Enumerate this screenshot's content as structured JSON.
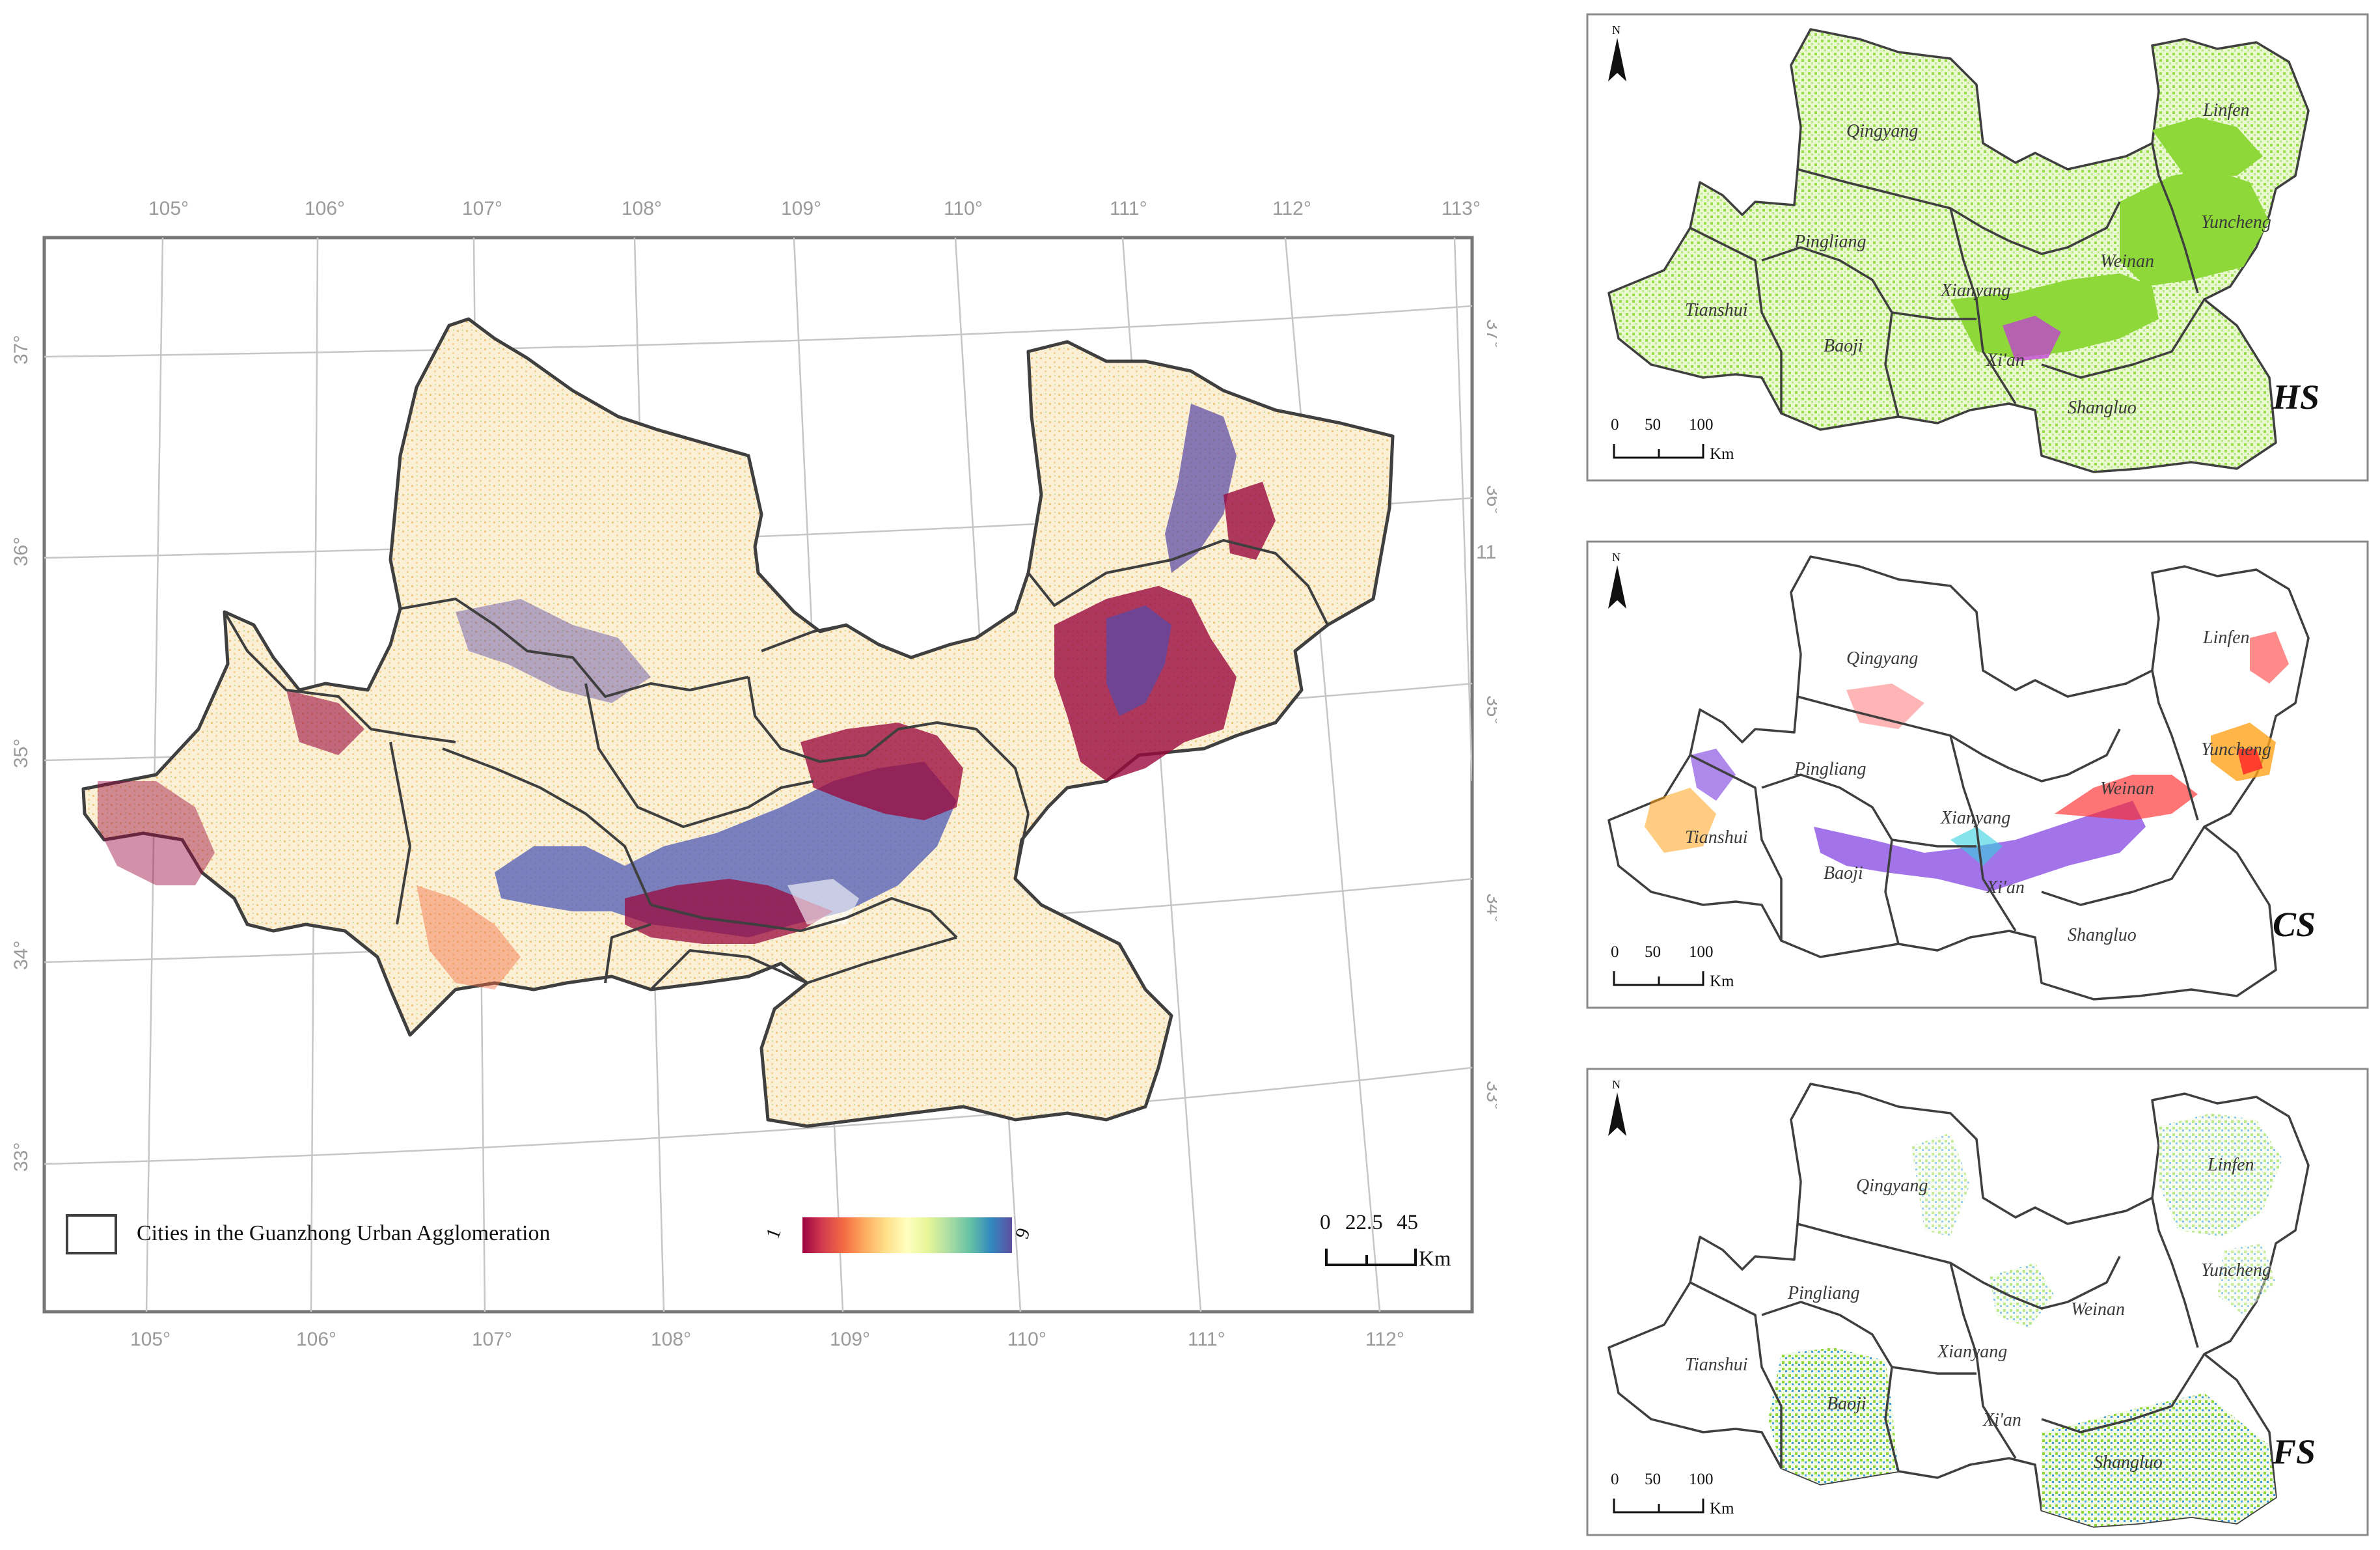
{
  "main_map": {
    "lon_labels": [
      "105°",
      "106°",
      "107°",
      "108°",
      "109°",
      "110°",
      "111°",
      "112°",
      "113°"
    ],
    "lat_labels": [
      "37°",
      "36°",
      "35°",
      "34°",
      "33°"
    ],
    "extra_label": "113°",
    "legend": {
      "boundary_label": "Cities in the Guanzhong Urban Agglomeration",
      "ramp_min": "1",
      "ramp_max": "9",
      "ramp_colors": [
        "#9e0142",
        "#d53e4f",
        "#f46d43",
        "#fdae61",
        "#fee08b",
        "#ffffbf",
        "#e6f598",
        "#abdda4",
        "#66c2a5",
        "#3288bd",
        "#5e4fa2"
      ]
    },
    "scale": {
      "ticks": [
        "0",
        "22.5",
        "45"
      ],
      "unit": "Km"
    },
    "colors": {
      "fill": "#f6e6c2",
      "dark": "#9b0a3e",
      "blue": "#3b63b0",
      "purple": "#5a4aa5",
      "green": "#b9d98d"
    }
  },
  "panels": [
    {
      "tag": "HS",
      "cities": [
        "Qingyang",
        "Linfen",
        "Pingliang",
        "Yuncheng",
        "Weinan",
        "Xianyang",
        "Tianshui",
        "Baoji",
        "Xi'an",
        "Shangluo"
      ],
      "colors": {
        "fill": "#8ed83a",
        "accent": "#c23cd8"
      }
    },
    {
      "tag": "CS",
      "cities": [
        "Qingyang",
        "Linfen",
        "Pingliang",
        "Yuncheng",
        "Weinan",
        "Xianyang",
        "Tianshui",
        "Baoji",
        "Xi'an",
        "Shangluo"
      ],
      "colors": {
        "red": "#ff2a2a",
        "purple": "#7a38e0",
        "orange": "#ffa21a",
        "cyan": "#35d0e0"
      }
    },
    {
      "tag": "FS",
      "cities": [
        "Qingyang",
        "Linfen",
        "Pingliang",
        "Yuncheng",
        "Weinan",
        "Xianyang",
        "Tianshui",
        "Baoji",
        "Xi'an",
        "Shangluo"
      ],
      "colors": {
        "green": "#8ed83a",
        "blue": "#3aa0e0"
      }
    }
  ],
  "panel_scale": {
    "ticks": [
      "0",
      "50",
      "100"
    ],
    "unit": "Km"
  },
  "north_label": "N"
}
